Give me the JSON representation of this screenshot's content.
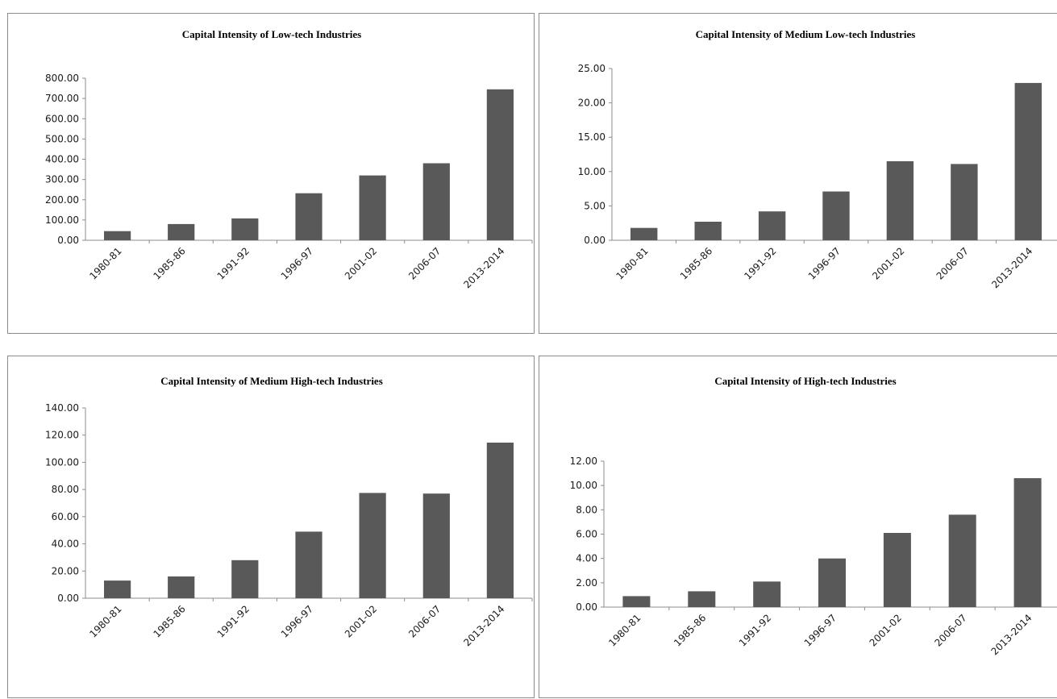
{
  "chart_data": [
    {
      "type": "bar",
      "title": "Capital Intensity  of Low-tech Industries",
      "categories": [
        "1980-81",
        "1985-86",
        "1991-92",
        "1996-97",
        "2001-02",
        "2006-07",
        "2013-2014"
      ],
      "values": [
        45,
        80,
        108,
        232,
        320,
        380,
        745
      ],
      "ylim": [
        0,
        800
      ],
      "yticks": [
        "0.00",
        "100.00",
        "200.00",
        "300.00",
        "400.00",
        "500.00",
        "600.00",
        "700.00",
        "800.00"
      ],
      "xlabel": "",
      "ylabel": "",
      "bar_color": "#595959",
      "grid": false,
      "legend": "none"
    },
    {
      "type": "bar",
      "title": "Capital Intensity  of Medium  Low-tech Industries",
      "categories": [
        "1980-81",
        "1985-86",
        "1991-92",
        "1996-97",
        "2001-02",
        "2006-07",
        "2013-2014"
      ],
      "values": [
        1.8,
        2.7,
        4.2,
        7.1,
        11.5,
        11.1,
        22.9
      ],
      "ylim": [
        0,
        25
      ],
      "yticks": [
        "0.00",
        "5.00",
        "10.00",
        "15.00",
        "20.00",
        "25.00"
      ],
      "xlabel": "",
      "ylabel": "",
      "bar_color": "#595959",
      "grid": false,
      "legend": "none"
    },
    {
      "type": "bar",
      "title": "Capital Intensity  of Medium  High-tech Industries",
      "categories": [
        "1980-81",
        "1985-86",
        "1991-92",
        "1996-97",
        "2001-02",
        "2006-07",
        "2013-2014"
      ],
      "values": [
        13,
        16,
        28,
        49,
        77.5,
        77,
        114.5
      ],
      "ylim": [
        0,
        140
      ],
      "yticks": [
        "0.00",
        "20.00",
        "40.00",
        "60.00",
        "80.00",
        "100.00",
        "120.00",
        "140.00"
      ],
      "xlabel": "",
      "ylabel": "",
      "bar_color": "#595959",
      "grid": false,
      "legend": "none"
    },
    {
      "type": "bar",
      "title": "Capital Intensity  of High-tech Industries",
      "categories": [
        "1980-81",
        "1985-86",
        "1991-92",
        "1996-97",
        "2001-02",
        "2006-07",
        "2013-2014"
      ],
      "values": [
        0.9,
        1.3,
        2.1,
        4.0,
        6.1,
        7.6,
        10.6
      ],
      "ylim": [
        0,
        12
      ],
      "yticks": [
        "0.00",
        "2.00",
        "4.00",
        "6.00",
        "8.00",
        "10.00",
        "12.00"
      ],
      "xlabel": "",
      "ylabel": "",
      "bar_color": "#595959",
      "grid": false,
      "legend": "none"
    }
  ]
}
